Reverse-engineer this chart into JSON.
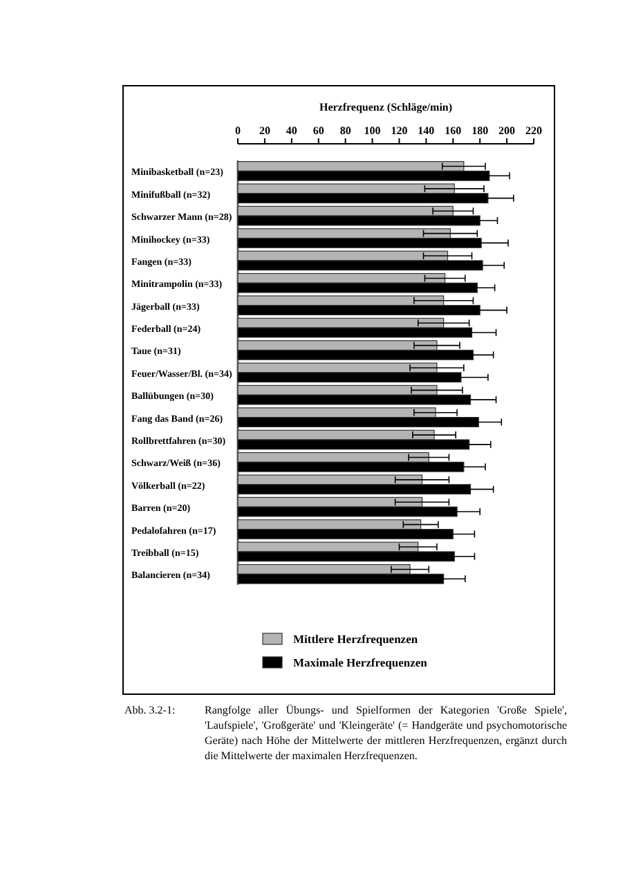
{
  "chart_data": {
    "type": "bar",
    "orientation": "horizontal",
    "xlabel": "Herzfrequenz (Schläge/min)",
    "categories": [
      "Minibasketball (n=23)",
      "Minifußball (n=32)",
      "Schwarzer Mann (n=28)",
      "Minihockey (n=33)",
      "Fangen (n=33)",
      "Minitrampolin (n=33)",
      "Jägerball (n=33)",
      "Federball (n=24)",
      "Taue (n=31)",
      "Feuer/Wasser/Bl. (n=34)",
      "Ballübungen (n=30)",
      "Fang das Band (n=26)",
      "Rollbrettfahren (n=30)",
      "Schwarz/Weiß (n=36)",
      "Völkerball (n=22)",
      "Barren (n=20)",
      "Pedalofahren (n=17)",
      "Treibball (n=15)",
      "Balancieren (n=34)"
    ],
    "series": [
      {
        "name": "Mittlere Herzfrequenzen",
        "color": "#b4b4b4",
        "values": [
          168,
          161,
          160,
          158,
          156,
          154,
          153,
          153,
          148,
          148,
          148,
          147,
          146,
          142,
          137,
          137,
          136,
          134,
          128
        ],
        "errors": [
          16,
          22,
          15,
          20,
          18,
          15,
          22,
          19,
          17,
          20,
          19,
          16,
          16,
          15,
          20,
          20,
          13,
          14,
          14
        ]
      },
      {
        "name": "Maximale Herzfrequenzen",
        "color": "#000000",
        "values": [
          187,
          186,
          180,
          181,
          182,
          178,
          180,
          174,
          175,
          166,
          173,
          179,
          172,
          168,
          173,
          163,
          160,
          161,
          153
        ],
        "errors": [
          15,
          19,
          13,
          20,
          16,
          13,
          20,
          18,
          15,
          20,
          19,
          17,
          16,
          16,
          17,
          17,
          16,
          15,
          16
        ]
      }
    ],
    "xlim": [
      0,
      220
    ],
    "xticks": [
      0,
      20,
      40,
      60,
      80,
      100,
      120,
      140,
      160,
      180,
      200,
      220
    ],
    "grid": false,
    "legend": "bottom",
    "annotations": [
      "Abb. 3.2-1:",
      "Rangfolge aller Übungs- und Spielformen der Kategorien 'Große Spiele', 'Laufspiele', 'Großgeräte' und 'Kleingeräte' (= Handgeräte und psychomotorische Geräte) nach Höhe der Mittelwerte der mittleren Herzfrequenzen, ergänzt durch die Mittelwerte der maximalen Herzfrequenzen."
    ]
  }
}
